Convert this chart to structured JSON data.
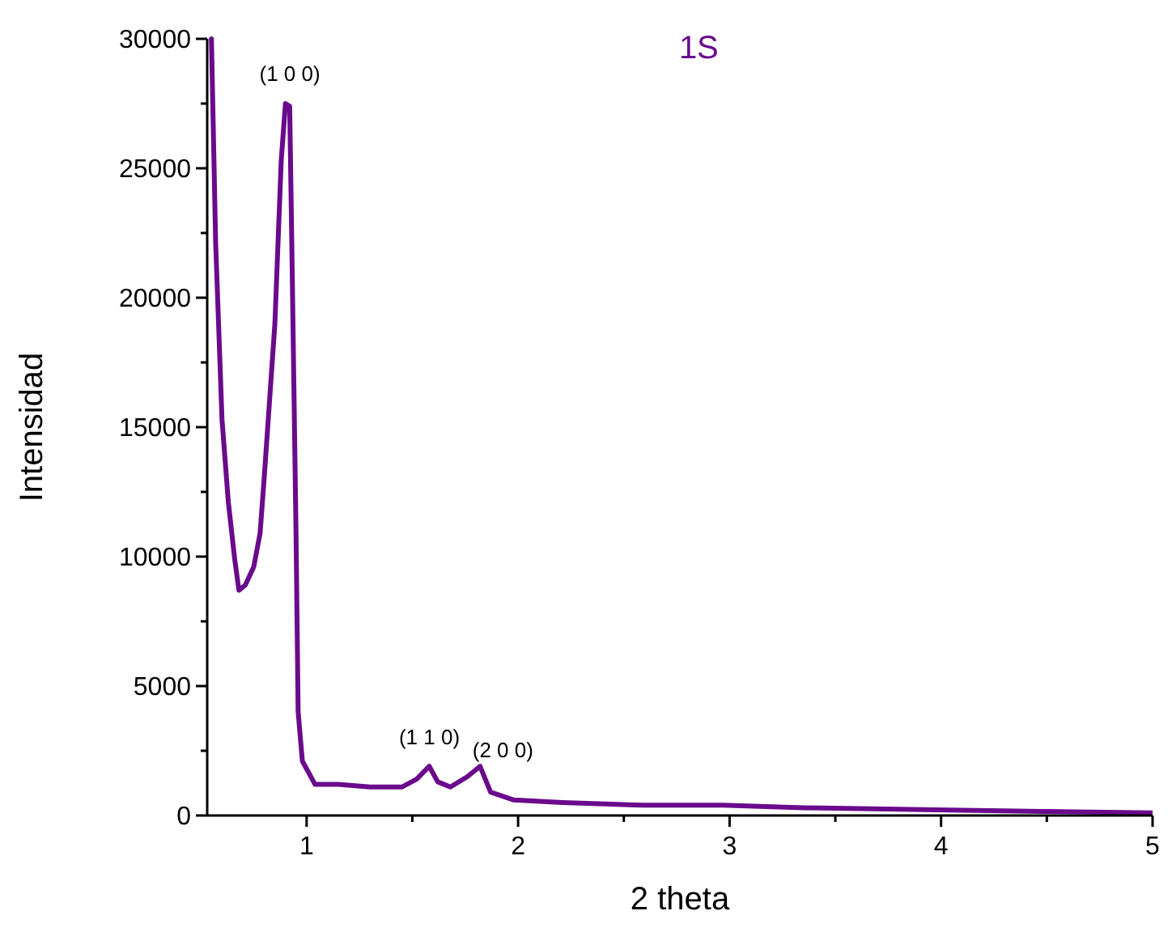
{
  "chart_data": {
    "type": "line",
    "xlabel": "2 theta",
    "ylabel": "Intensidad",
    "xlim": [
      0.53,
      5
    ],
    "ylim": [
      0,
      30000
    ],
    "xticks": [
      1,
      {
        "value": 1.5,
        "label": null
      },
      2,
      {
        "value": 2.5,
        "label": null
      },
      3,
      {
        "value": 3.5,
        "label": null
      },
      4,
      {
        "value": 4.5,
        "label": null
      },
      5
    ],
    "yticks": [
      0,
      {
        "value": 2500,
        "label": null
      },
      5000,
      {
        "value": 7500,
        "label": null
      },
      10000,
      {
        "value": 12500,
        "label": null
      },
      15000,
      {
        "value": 17500,
        "label": null
      },
      20000,
      {
        "value": 22500,
        "label": null
      },
      25000,
      {
        "value": 27500,
        "label": null
      },
      30000
    ],
    "grid": false,
    "marker": "none",
    "line_style": "solid",
    "annotations": [
      {
        "text": "(1 0 0)",
        "x": 0.92,
        "y": 27500
      },
      {
        "text": "(1 1 0)",
        "x": 1.58,
        "y": 1875
      },
      {
        "text": "(2 0 0)",
        "x": 1.82,
        "y": 1875
      }
    ],
    "series": [
      {
        "name": "1S",
        "color": "#6a0a8c",
        "x": [
          0.55,
          0.57,
          0.6,
          0.63,
          0.66,
          0.68,
          0.71,
          0.75,
          0.78,
          0.8,
          0.85,
          0.88,
          0.9,
          0.92,
          0.93,
          0.95,
          0.96,
          0.98,
          1.04,
          1.15,
          1.3,
          1.45,
          1.52,
          1.58,
          1.62,
          1.68,
          1.76,
          1.82,
          1.87,
          1.98,
          2.21,
          2.59,
          2.97,
          3.35,
          4.1,
          5.0
        ],
        "values": [
          30000,
          22100,
          15300,
          12100,
          9900,
          8700,
          8900,
          9600,
          10900,
          13100,
          19000,
          25300,
          27500,
          27400,
          22100,
          10900,
          4000,
          2100,
          1200,
          1200,
          1100,
          1100,
          1400,
          1900,
          1300,
          1100,
          1500,
          1900,
          900,
          600,
          500,
          400,
          400,
          300,
          200,
          100
        ]
      }
    ]
  }
}
